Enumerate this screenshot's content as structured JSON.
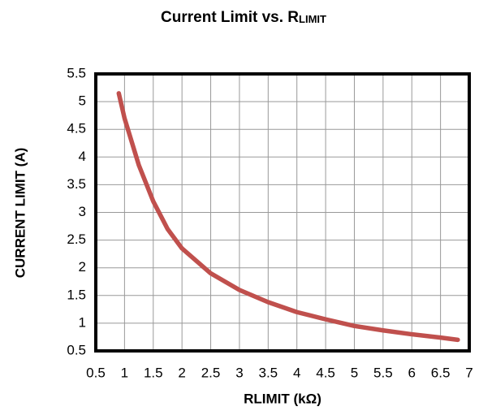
{
  "chart_data": {
    "type": "line",
    "title": "Current Limit vs. R",
    "title_subscript": "LIMIT",
    "x_label": "RLIMIT (kΩ)",
    "y_label": "CURRENT  LIMIT (A)",
    "x": [
      0.9,
      1,
      1.25,
      1.5,
      1.75,
      2,
      2.5,
      3,
      3.5,
      4,
      4.5,
      5,
      5.5,
      6,
      6.5,
      6.8
    ],
    "series": [
      {
        "color": "#c0504d",
        "values": [
          5.15,
          4.7,
          3.85,
          3.2,
          2.7,
          2.35,
          1.9,
          1.6,
          1.38,
          1.2,
          1.07,
          0.95,
          0.87,
          0.8,
          0.74,
          0.7
        ]
      }
    ],
    "xlim": [
      0.5,
      7
    ],
    "xticks": [
      0.5,
      1,
      1.5,
      2,
      2.5,
      3,
      3.5,
      4,
      4.5,
      5,
      5.5,
      6,
      6.5,
      7
    ],
    "ylim": [
      0.5,
      5.5
    ],
    "yticks": [
      0.5,
      1,
      1.5,
      2,
      2.5,
      3,
      3.5,
      4,
      4.5,
      5,
      5.5
    ],
    "grid": true
  }
}
